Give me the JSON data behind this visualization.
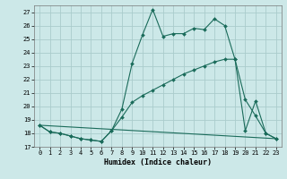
{
  "xlabel": "Humidex (Indice chaleur)",
  "background_color": "#cce8e8",
  "grid_color": "#aacccc",
  "line_color": "#1a6b5a",
  "xlim": [
    -0.5,
    23.5
  ],
  "ylim": [
    17,
    27.5
  ],
  "yticks": [
    17,
    18,
    19,
    20,
    21,
    22,
    23,
    24,
    25,
    26,
    27
  ],
  "xticks": [
    0,
    1,
    2,
    3,
    4,
    5,
    6,
    7,
    8,
    9,
    10,
    11,
    12,
    13,
    14,
    15,
    16,
    17,
    18,
    19,
    20,
    21,
    22,
    23
  ],
  "series1_x": [
    0,
    1,
    2,
    3,
    4,
    5,
    6,
    7,
    8,
    9,
    10,
    11,
    12,
    13,
    14,
    15,
    16,
    17,
    18,
    19,
    20,
    21,
    22,
    23
  ],
  "series1_y": [
    18.6,
    18.1,
    18.0,
    17.8,
    17.6,
    17.5,
    17.4,
    18.2,
    19.8,
    23.2,
    25.3,
    27.2,
    25.2,
    25.4,
    25.4,
    25.8,
    25.7,
    26.5,
    26.0,
    23.5,
    18.2,
    20.4,
    18.0,
    17.6
  ],
  "series2_x": [
    0,
    1,
    2,
    3,
    4,
    5,
    6,
    7,
    8,
    9,
    10,
    11,
    12,
    13,
    14,
    15,
    16,
    17,
    18,
    19,
    20,
    21,
    22,
    23
  ],
  "series2_y": [
    18.6,
    18.1,
    18.0,
    17.8,
    17.6,
    17.5,
    17.4,
    18.2,
    19.2,
    20.3,
    20.8,
    21.2,
    21.6,
    22.0,
    22.4,
    22.7,
    23.0,
    23.3,
    23.5,
    23.5,
    20.5,
    19.3,
    18.0,
    17.6
  ],
  "series3_x": [
    0,
    23
  ],
  "series3_y": [
    18.6,
    17.6
  ],
  "title_fontsize": 7,
  "xlabel_fontsize": 6,
  "tick_fontsize": 5
}
